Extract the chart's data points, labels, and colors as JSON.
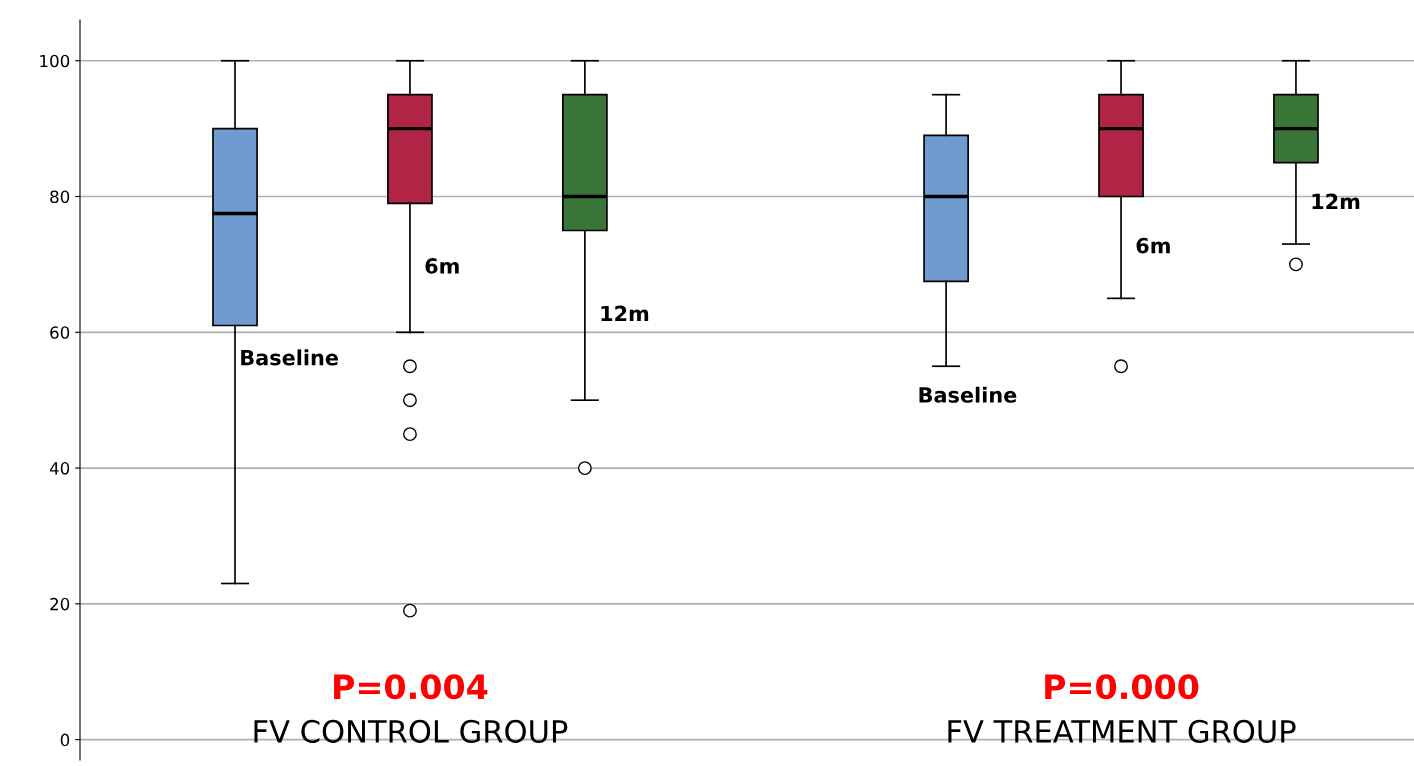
{
  "chart_data": {
    "type": "box",
    "categories": [
      "FV CONTROL GROUP",
      "FV TREATMENT GROUP"
    ],
    "series": [
      {
        "name": "Baseline",
        "color": "#6f9bd1",
        "boxes": [
          {
            "low": 23,
            "q1": 61,
            "median": 77.5,
            "q3": 90,
            "high": 100
          },
          {
            "low": 55,
            "q1": 67.5,
            "median": 80,
            "q3": 89,
            "high": 95
          }
        ]
      },
      {
        "name": "6m",
        "color": "#b02446",
        "boxes": [
          {
            "low": 60,
            "q1": 79,
            "median": 90,
            "q3": 95,
            "high": 100,
            "outliers": [
              55,
              50,
              45,
              19
            ]
          },
          {
            "low": 65,
            "q1": 80,
            "median": 90,
            "q3": 95,
            "high": 100,
            "outliers": [
              55
            ]
          }
        ]
      },
      {
        "name": "12m",
        "color": "#3a7538",
        "boxes": [
          {
            "low": 50,
            "q1": 75,
            "median": 80,
            "q3": 95,
            "high": 100,
            "outliers": [
              40
            ]
          },
          {
            "low": 73,
            "q1": 85,
            "median": 90,
            "q3": 95,
            "high": 100,
            "outliers": [
              70
            ]
          }
        ]
      }
    ],
    "annotations": [
      "P=0.004",
      "P=0.000"
    ],
    "ylim": [
      -3,
      106
    ],
    "yticks": [
      0,
      20,
      40,
      60,
      80,
      100
    ],
    "grid": "y"
  }
}
